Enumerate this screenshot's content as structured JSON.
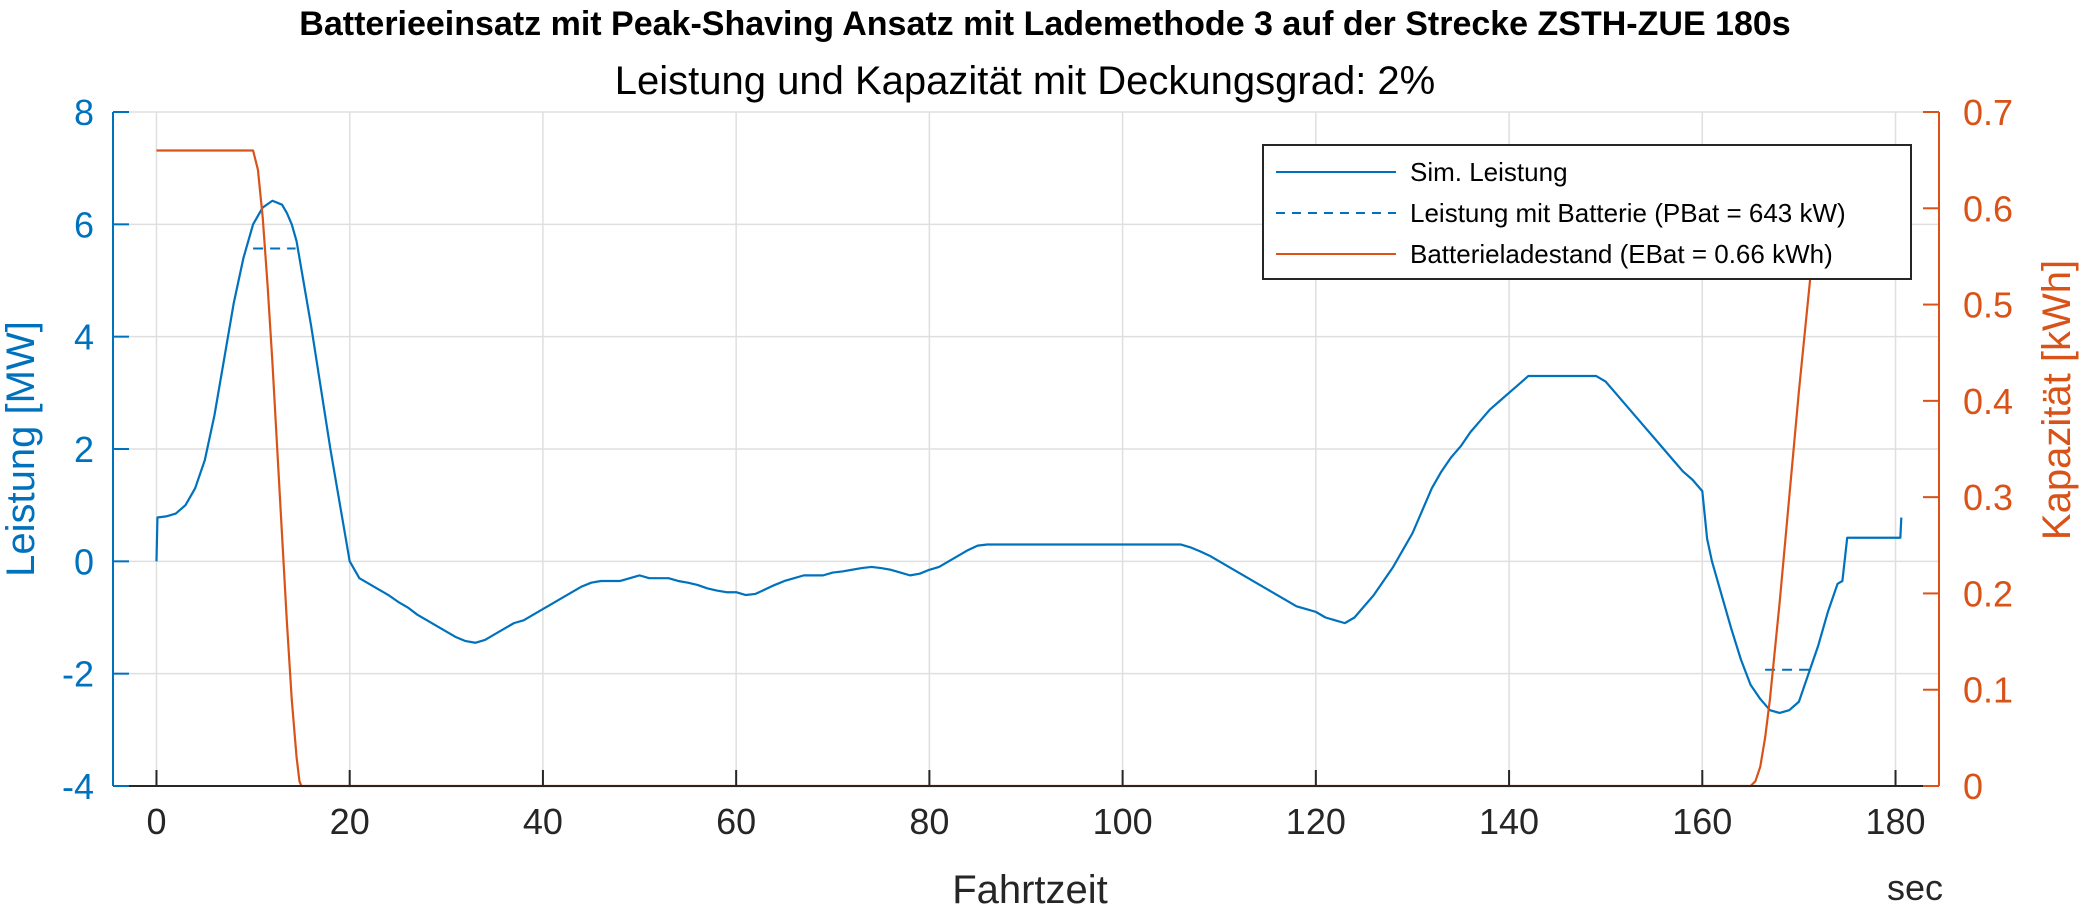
{
  "chart_data": {
    "type": "line",
    "title": "Batterieeinsatz mit Peak-Shaving Ansatz mit Lademethode 3 auf der Strecke ZSTH-ZUE 180s",
    "subtitle": "Leistung und Kapazität mit Deckungsgrad: 2%",
    "xlabel": "Fahrtzeit",
    "xunit": "sec",
    "ylabel_left": "Leistung [MW]",
    "ylabel_right": "Kapazität [kWh]",
    "xlim": [
      -4.5,
      184.5
    ],
    "ylim_left": [
      -4,
      8
    ],
    "ylim_right": [
      0,
      0.7
    ],
    "xticks": [
      0,
      20,
      40,
      60,
      80,
      100,
      120,
      140,
      160,
      180
    ],
    "yticks_left": [
      -4,
      -2,
      0,
      2,
      4,
      6,
      8
    ],
    "yticks_right": [
      0,
      0.1,
      0.2,
      0.3,
      0.4,
      0.5,
      0.6,
      0.7
    ],
    "xtick_labels": [
      "0",
      "20",
      "40",
      "60",
      "80",
      "100",
      "120",
      "140",
      "160",
      "180"
    ],
    "ytick_labels_left": [
      "-4",
      "-2",
      "0",
      "2",
      "4",
      "6",
      "8"
    ],
    "ytick_labels_right": [
      "0",
      "0.1",
      "0.2",
      "0.3",
      "0.4",
      "0.5",
      "0.6",
      "0.7"
    ],
    "grid": true,
    "legend_position": "top-right",
    "colors": {
      "left_axis": "#0072BD",
      "right_axis": "#D95319",
      "grid": "#dfdfdf"
    },
    "series": [
      {
        "name": "Sim. Leistung",
        "axis": "left",
        "style": "solid",
        "color": "#0072BD",
        "x": [
          0,
          0.1,
          1,
          2,
          3,
          4,
          5,
          6,
          7,
          8,
          9,
          10,
          11,
          12,
          13,
          13.5,
          14,
          14.5,
          15,
          16,
          17,
          18,
          19,
          19.5,
          20,
          21,
          22,
          23,
          24,
          25,
          26,
          27,
          28,
          29,
          30,
          31,
          32,
          33,
          34,
          35,
          36,
          37,
          38,
          39,
          40,
          41,
          42,
          43,
          44,
          45,
          46,
          47,
          48,
          49,
          50,
          51,
          52,
          53,
          54,
          55,
          56,
          57,
          58,
          59,
          60,
          61,
          62,
          63,
          64,
          65,
          66,
          67,
          68,
          69,
          70,
          71,
          72,
          73,
          74,
          75,
          76,
          77,
          78,
          79,
          80,
          81,
          82,
          83,
          84,
          85,
          86,
          87,
          90,
          95,
          100,
          105,
          106,
          107,
          108,
          109,
          110,
          111,
          112,
          113,
          114,
          115,
          116,
          117,
          118,
          119,
          120,
          121,
          122,
          123,
          124,
          125,
          126,
          127,
          128,
          129,
          130,
          131,
          132,
          133,
          134,
          135,
          136,
          137,
          138,
          139,
          140,
          141,
          142,
          143,
          144,
          145,
          146,
          147,
          148,
          149,
          150,
          151,
          152,
          153,
          154,
          155,
          156,
          157,
          158,
          159,
          160,
          160.5,
          161,
          162,
          163,
          164,
          165,
          166,
          167,
          168,
          169,
          170,
          171,
          172,
          173,
          174,
          174.5,
          175,
          178,
          180,
          180.5,
          180.6
        ],
        "values": [
          0,
          0.78,
          0.8,
          0.85,
          1.0,
          1.3,
          1.8,
          2.6,
          3.6,
          4.6,
          5.4,
          6.0,
          6.3,
          6.42,
          6.35,
          6.2,
          6.0,
          5.7,
          5.2,
          4.2,
          3.1,
          2.0,
          1.0,
          0.5,
          0.0,
          -0.3,
          -0.4,
          -0.5,
          -0.6,
          -0.72,
          -0.82,
          -0.95,
          -1.05,
          -1.15,
          -1.25,
          -1.35,
          -1.42,
          -1.45,
          -1.4,
          -1.3,
          -1.2,
          -1.1,
          -1.05,
          -0.95,
          -0.85,
          -0.75,
          -0.65,
          -0.55,
          -0.45,
          -0.38,
          -0.35,
          -0.35,
          -0.35,
          -0.3,
          -0.25,
          -0.3,
          -0.3,
          -0.3,
          -0.35,
          -0.38,
          -0.42,
          -0.48,
          -0.52,
          -0.55,
          -0.55,
          -0.6,
          -0.58,
          -0.5,
          -0.42,
          -0.35,
          -0.3,
          -0.25,
          -0.25,
          -0.25,
          -0.2,
          -0.18,
          -0.15,
          -0.12,
          -0.1,
          -0.12,
          -0.15,
          -0.2,
          -0.25,
          -0.22,
          -0.15,
          -0.1,
          0,
          0.1,
          0.2,
          0.28,
          0.3,
          0.3,
          0.3,
          0.3,
          0.3,
          0.3,
          0.3,
          0.25,
          0.18,
          0.1,
          0,
          -0.1,
          -0.2,
          -0.3,
          -0.4,
          -0.5,
          -0.6,
          -0.7,
          -0.8,
          -0.85,
          -0.9,
          -1.0,
          -1.05,
          -1.1,
          -1.0,
          -0.8,
          -0.6,
          -0.35,
          -0.1,
          0.2,
          0.5,
          0.9,
          1.3,
          1.6,
          1.85,
          2.05,
          2.3,
          2.5,
          2.7,
          2.85,
          3.0,
          3.15,
          3.3,
          3.3,
          3.3,
          3.3,
          3.3,
          3.3,
          3.3,
          3.3,
          3.2,
          3.0,
          2.8,
          2.6,
          2.4,
          2.2,
          2.0,
          1.8,
          1.6,
          1.45,
          1.25,
          0.4,
          0.0,
          -0.6,
          -1.2,
          -1.75,
          -2.2,
          -2.45,
          -2.65,
          -2.7,
          -2.65,
          -2.5,
          -2.0,
          -1.5,
          -0.9,
          -0.4,
          -0.35,
          0.42,
          0.42,
          0.42,
          0.42,
          0.78
        ]
      },
      {
        "name": "Leistung mit Batterie (PBat = 643 kW)",
        "axis": "left",
        "style": "dashed",
        "color": "#0072BD",
        "segments": [
          {
            "x": [
              10,
              14.4
            ],
            "values": [
              5.57,
              5.57
            ]
          },
          {
            "x": [
              166.5,
              171.5
            ],
            "values": [
              -1.93,
              -1.93
            ]
          }
        ]
      },
      {
        "name": "Batterieladestand (EBat = 0.66 kWh)",
        "axis": "right",
        "style": "solid",
        "color": "#D95319",
        "x": [
          0,
          10,
          10.5,
          11,
          11.5,
          12,
          12.5,
          13,
          13.5,
          14,
          14.5,
          14.8,
          15,
          16,
          160,
          165,
          165.5,
          166,
          166.5,
          167,
          168,
          169,
          170,
          171,
          172,
          172.5,
          173,
          174,
          175,
          180
        ],
        "values": [
          0.66,
          0.66,
          0.64,
          0.59,
          0.52,
          0.44,
          0.35,
          0.26,
          0.17,
          0.09,
          0.03,
          0.005,
          0,
          0,
          0,
          0,
          0.005,
          0.02,
          0.05,
          0.09,
          0.19,
          0.3,
          0.41,
          0.51,
          0.61,
          0.66,
          0.66,
          0.66,
          0.66,
          0.66
        ]
      }
    ]
  }
}
